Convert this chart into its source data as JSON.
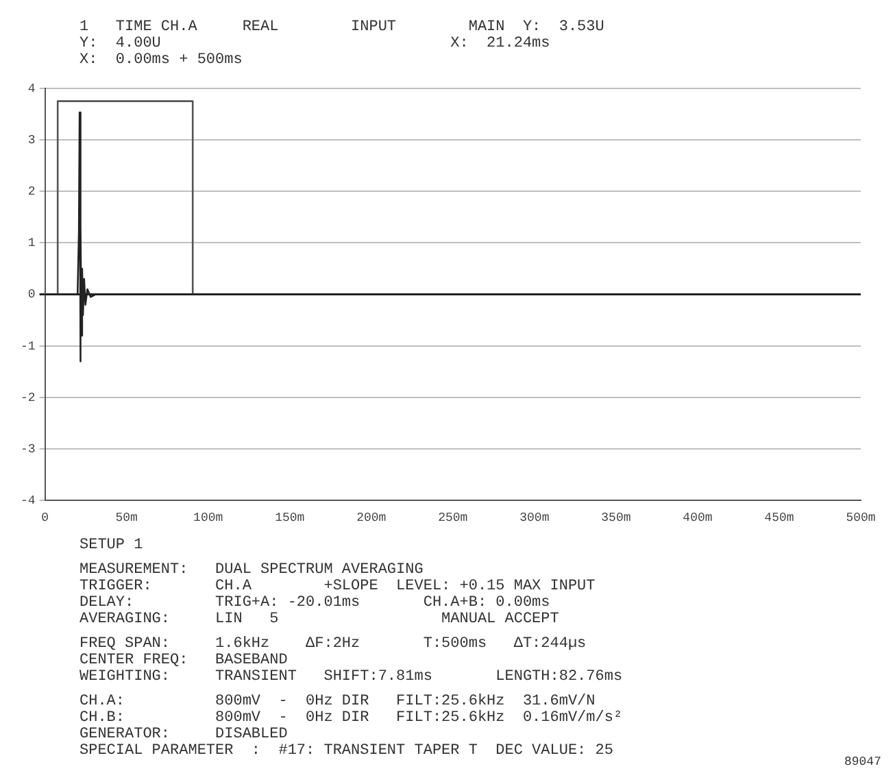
{
  "chart_data": {
    "type": "line",
    "annotations": [
      "1   TIME CH.A     REAL        INPUT        MAIN  Y:  3.53U",
      "Y:  4.00U                                X:  21.24ms",
      "X:  0.00ms + 500ms",
      "SETUP 1",
      "MEASUREMENT:   DUAL SPECTRUM AVERAGING",
      "TRIGGER:       CH.A        +SLOPE  LEVEL: +0.15 MAX INPUT",
      "DELAY:         TRIG+A: -20.01ms       CH.A+B: 0.00ms",
      "AVERAGING:     LIN   5                  MANUAL ACCEPT",
      "FREQ SPAN:     1.6kHz    ΔF:2Hz       T:500ms   ΔT:244µs",
      "CENTER FREQ:   BASEBAND",
      "WEIGHTING:     TRANSIENT   SHIFT:7.81ms       LENGTH:82.76ms",
      "CH.A:          800mV  -  0Hz DIR   FILT:25.6kHz  31.6mV/N",
      "CH.B:          800mV  -  0Hz DIR   FILT:25.6kHz  0.16mV/m/s²",
      "GENERATOR:     DISABLED",
      "SPECIAL PARAMETER  :  #17: TRANSIENT TAPER T  DEC VALUE: 25",
      "89047"
    ],
    "series": [
      {
        "color": "#222222",
        "x": [
          0,
          20,
          20.8,
          21.24,
          21.6,
          22,
          22.4,
          22.8,
          23.3,
          24,
          24.8,
          26,
          28,
          31,
          500
        ],
        "values": [
          0,
          0,
          1.2,
          3.53,
          -1.3,
          1.3,
          -0.8,
          0.5,
          -0.4,
          0.3,
          -0.2,
          0.1,
          -0.05,
          0,
          0
        ]
      },
      {
        "color": "#555555",
        "x": [
          7.81,
          7.81,
          90.57,
          90.57
        ],
        "values": [
          0,
          3.75,
          3.75,
          0
        ]
      }
    ],
    "xlim": [
      0,
      500
    ],
    "xticks": [
      0,
      {
        "value": 50,
        "label": "50m"
      },
      {
        "value": 100,
        "label": "100m"
      },
      {
        "value": 150,
        "label": "150m"
      },
      {
        "value": 200,
        "label": "200m"
      },
      {
        "value": 250,
        "label": "250m"
      },
      {
        "value": 300,
        "label": "300m"
      },
      {
        "value": 350,
        "label": "350m"
      },
      {
        "value": 400,
        "label": "400m"
      },
      {
        "value": 450,
        "label": "450m"
      },
      {
        "value": 500,
        "label": "500m"
      }
    ],
    "ylim": [
      -4,
      4
    ],
    "yticks": [
      -4,
      -3,
      -2,
      -1,
      0,
      1,
      2,
      3,
      4
    ],
    "grid": "y"
  }
}
